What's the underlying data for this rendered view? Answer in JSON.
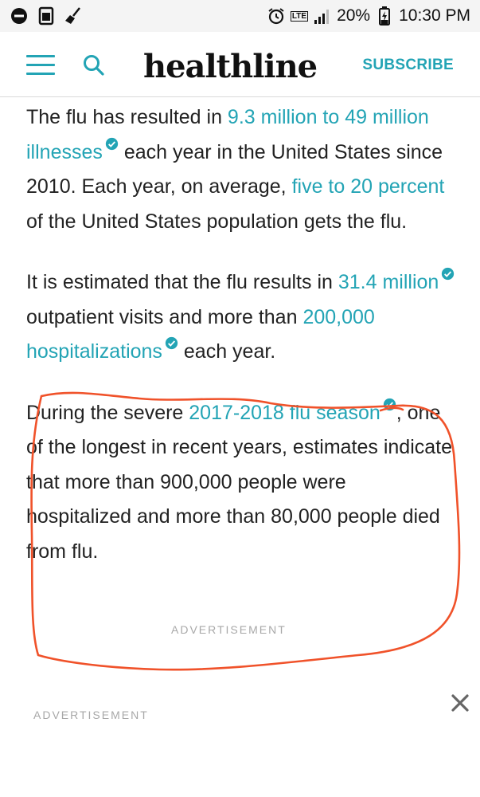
{
  "status_bar": {
    "battery": "20%",
    "time": "10:30 PM",
    "network": "LTE"
  },
  "header": {
    "logo": "healthline",
    "subscribe_label": "SUBSCRIBE"
  },
  "article": {
    "p1": {
      "t1": "The flu has resulted in ",
      "link1": "9.3 million to 49 million illnesses",
      "t2": " each year in the United States since 2010. Each year, on average, ",
      "link2": "five to 20 percent",
      "t3": " of the United States population gets the flu."
    },
    "p2": {
      "t1": "It is estimated that the flu results in ",
      "link1": "31.4 million",
      "t2": " outpatient visits and more than ",
      "link2": "200,000 hospitalizations",
      "t3": " each year."
    },
    "p3": {
      "t1": "During the severe ",
      "link1": "2017-2018 flu season",
      "t2": ", one of the longest in recent years, estimates indicate that more than 900,000 people were hospitalized and more than 80,000 people died from flu."
    }
  },
  "ads": {
    "label1": "ADVERTISEMENT",
    "label2": "ADVERTISEMENT"
  },
  "colors": {
    "accent": "#23a4b5",
    "annotation": "#f0522a"
  }
}
